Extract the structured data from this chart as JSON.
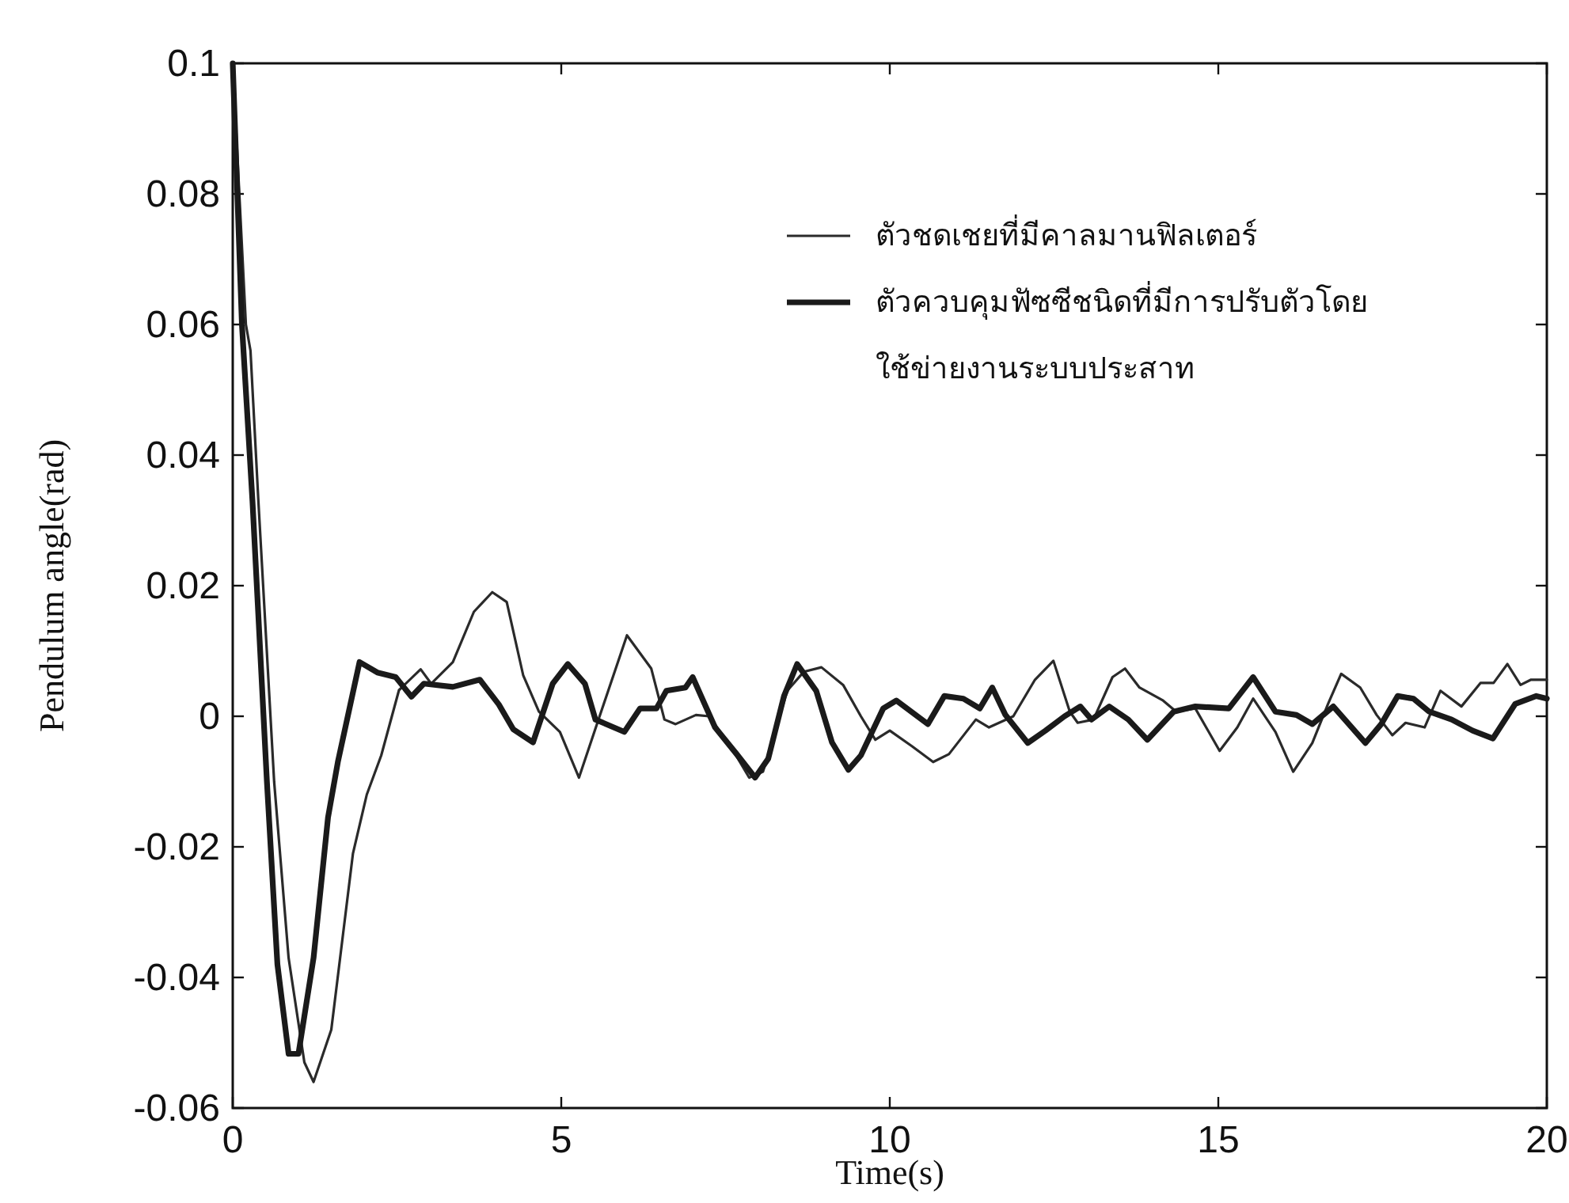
{
  "chart_data": {
    "type": "line",
    "xlabel": "Time(s)",
    "ylabel": "Pendulum angle(rad)",
    "xlim": [
      0,
      20
    ],
    "ylim": [
      -0.06,
      0.1
    ],
    "xticks": [
      0,
      5,
      10,
      15,
      20
    ],
    "yticks": [
      -0.06,
      -0.04,
      -0.02,
      0,
      0.02,
      0.04,
      0.06,
      0.08,
      0.1
    ],
    "legend": "top right",
    "series": [
      {
        "name": "ตัวชดเชยที่มีคาลมานฟิลเตอร์",
        "color": "#2a2a2a",
        "x": [
          0,
          0.2,
          0.27,
          0.39,
          0.63,
          0.85,
          1.09,
          1.23,
          1.5,
          1.83,
          2.04,
          2.26,
          2.53,
          2.86,
          3.02,
          3.35,
          3.67,
          3.95,
          4.17,
          4.42,
          4.66,
          4.98,
          5.27,
          5.55,
          6.0,
          6.37,
          6.57,
          6.74,
          7.05,
          7.25,
          7.59,
          7.86,
          8.07,
          8.44,
          8.69,
          8.96,
          9.29,
          9.56,
          9.78,
          10.0,
          10.34,
          10.66,
          10.9,
          11.31,
          11.51,
          11.88,
          12.21,
          12.49,
          12.74,
          12.86,
          13.1,
          13.39,
          13.58,
          13.8,
          14.16,
          14.36,
          14.65,
          15.02,
          15.29,
          15.53,
          15.87,
          16.14,
          16.43,
          16.67,
          16.87,
          17.16,
          17.41,
          17.65,
          17.85,
          18.14,
          18.38,
          18.7,
          18.99,
          19.19,
          19.4,
          19.6,
          19.76,
          20
        ],
        "values": [
          0.1,
          0.06,
          0.056,
          0.033,
          -0.01,
          -0.037,
          -0.053,
          -0.056,
          -0.048,
          -0.021,
          -0.012,
          -0.006,
          0.004,
          0.0072,
          0.005,
          0.0083,
          0.016,
          0.019,
          0.0175,
          0.0063,
          0.0007,
          -0.0024,
          -0.0094,
          -0.001,
          0.0124,
          0.0073,
          -0.0005,
          -0.0012,
          0.0002,
          0,
          -0.0048,
          -0.0094,
          -0.0085,
          0.0039,
          0.0068,
          0.0075,
          0.0048,
          0,
          -0.0036,
          -0.0022,
          -0.0046,
          -0.007,
          -0.0058,
          -0.0005,
          -0.0017,
          0,
          0.0056,
          0.0085,
          0.0007,
          -0.001,
          -0.0005,
          0.006,
          0.0073,
          0.0044,
          0.0024,
          0.0007,
          0.0012,
          -0.0053,
          -0.0017,
          0.0027,
          -0.0024,
          -0.0085,
          -0.0041,
          0.0019,
          0.0065,
          0.0044,
          0.0002,
          -0.0029,
          -0.001,
          -0.0017,
          0.0039,
          0.0015,
          0.0051,
          0.0051,
          0.008,
          0.0048,
          0.0056,
          0.0056
        ]
      },
      {
        "name": "ตัวควบคุมฟัซซีชนิดที่มีการปรับตัวโดยใช้ข่ายงานระบบประสาท",
        "color": "#1a1a1a",
        "x": [
          0,
          0.14,
          0.3,
          0.52,
          0.68,
          0.85,
          1.0,
          1.23,
          1.45,
          1.6,
          1.93,
          2.2,
          2.48,
          2.72,
          2.91,
          3.35,
          3.76,
          4.05,
          4.27,
          4.57,
          4.87,
          5.1,
          5.36,
          5.52,
          5.96,
          6.2,
          6.45,
          6.6,
          6.89,
          7.0,
          7.34,
          7.67,
          7.95,
          8.15,
          8.39,
          8.59,
          8.88,
          9.12,
          9.37,
          9.56,
          9.9,
          10.1,
          10.58,
          10.83,
          11.12,
          11.37,
          11.56,
          11.76,
          12.1,
          12.37,
          12.66,
          12.9,
          13.07,
          13.34,
          13.63,
          13.92,
          14.32,
          14.65,
          15.16,
          15.53,
          15.87,
          16.19,
          16.43,
          16.75,
          17.24,
          17.48,
          17.73,
          17.97,
          18.21,
          18.55,
          18.87,
          19.18,
          19.52,
          19.84,
          20
        ],
        "values": [
          0.1,
          0.06,
          0.033,
          -0.01,
          -0.038,
          -0.0517,
          -0.0517,
          -0.037,
          -0.0155,
          -0.007,
          0.0083,
          0.0067,
          0.006,
          0.003,
          0.005,
          0.0045,
          0.0056,
          0.0018,
          -0.002,
          -0.004,
          0.005,
          0.008,
          0.005,
          -0.0005,
          -0.0024,
          0.0012,
          0.0012,
          0.0039,
          0.0044,
          0.006,
          -0.0017,
          -0.0058,
          -0.0094,
          -0.0065,
          0.0031,
          0.008,
          0.0039,
          -0.004,
          -0.0082,
          -0.006,
          0.0012,
          0.0024,
          -0.0012,
          0.0031,
          0.0027,
          0.0012,
          0.0044,
          0.0002,
          -0.0041,
          -0.0022,
          0,
          0.0015,
          -0.0005,
          0.0015,
          -0.0005,
          -0.0036,
          0.0007,
          0.0015,
          0.0012,
          0.006,
          0.0007,
          0.0002,
          -0.0012,
          0.0015,
          -0.0041,
          -0.0012,
          0.0031,
          0.0027,
          0.0007,
          -0.0005,
          -0.0022,
          -0.0034,
          0.0019,
          0.0031,
          0.0027
        ]
      }
    ]
  }
}
